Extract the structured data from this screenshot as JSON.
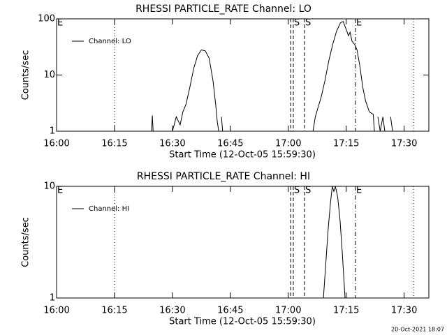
{
  "chart_data": [
    {
      "type": "line",
      "title": "RHESSI PARTICLE_RATE Channel: LO",
      "xlabel": "Start Time (12-Oct-05 15:59:30)",
      "ylabel": "Counts/sec",
      "log_y": true,
      "ylim": [
        1,
        100
      ],
      "yticks": [
        1,
        10,
        100
      ],
      "xlim": [
        0,
        96.4
      ],
      "xticks": [
        {
          "value": 0,
          "label": "16:00"
        },
        {
          "value": 15,
          "label": "16:15"
        },
        {
          "value": 30,
          "label": "16:30"
        },
        {
          "value": 45,
          "label": "16:45"
        },
        {
          "value": 60,
          "label": "17:00"
        },
        {
          "value": 75,
          "label": "17:15"
        },
        {
          "value": 90,
          "label": "17:30"
        }
      ],
      "vlines": [
        {
          "x": 15,
          "style": "dotted"
        },
        {
          "x": 60.6,
          "style": "dashed"
        },
        {
          "x": 61.3,
          "style": "dashed"
        },
        {
          "x": 64.2,
          "style": "dashed"
        },
        {
          "x": 77.4,
          "style": "dashdot"
        },
        {
          "x": 92.4,
          "style": "dotted"
        }
      ],
      "markers": [
        {
          "text": "E",
          "x": 0
        },
        {
          "text": "S",
          "x": 61.3
        },
        {
          "text": "S",
          "x": 64.2
        },
        {
          "text": "E",
          "x": 77.4
        }
      ],
      "series": [
        {
          "name": "Channel: LO",
          "color": "#000000",
          "x": [
            24.6,
            24.8,
            25.0,
            null,
            30.0,
            31.0,
            32.0,
            32.7,
            33.5,
            34.5,
            35.5,
            36.5,
            37.5,
            38.5,
            39.5,
            40.5,
            41.2,
            41.6,
            42.0,
            null,
            42.7,
            43.0,
            null,
            66.4,
            67.0,
            67.6,
            68.5,
            69.5,
            70.5,
            71.5,
            72.5,
            73.5,
            74.2,
            75.0,
            75.6,
            76.0,
            76.5,
            77.2,
            77.8,
            78.5,
            79.3,
            80.0,
            81.0,
            82.0,
            82.3,
            null,
            83.2,
            83.8,
            84.5,
            85.0,
            null,
            86.5,
            87.0
          ],
          "values": [
            1,
            1.9,
            1,
            null,
            1,
            1.8,
            1.3,
            2.2,
            3,
            6,
            13,
            22,
            28,
            27,
            20,
            8,
            3,
            1.5,
            1,
            null,
            1.8,
            1,
            null,
            1,
            1.8,
            2.5,
            4,
            8,
            18,
            35,
            60,
            85,
            90,
            65,
            50,
            58,
            40,
            35,
            28,
            15,
            6,
            3.5,
            2.2,
            2,
            1,
            null,
            1.8,
            1,
            1.8,
            1,
            null,
            1.8,
            1
          ]
        }
      ]
    },
    {
      "type": "line",
      "title": "RHESSI PARTICLE_RATE Channel: HI",
      "xlabel": "Start Time (12-Oct-05 15:59:30)",
      "ylabel": "Counts/sec",
      "log_y": true,
      "ylim": [
        1,
        10
      ],
      "yticks": [
        1,
        10
      ],
      "xlim": [
        0,
        96.4
      ],
      "xticks": [
        {
          "value": 0,
          "label": "16:00"
        },
        {
          "value": 15,
          "label": "16:15"
        },
        {
          "value": 30,
          "label": "16:30"
        },
        {
          "value": 45,
          "label": "16:45"
        },
        {
          "value": 60,
          "label": "17:00"
        },
        {
          "value": 75,
          "label": "17:15"
        },
        {
          "value": 90,
          "label": "17:30"
        }
      ],
      "vlines": [
        {
          "x": 15,
          "style": "dotted"
        },
        {
          "x": 60.6,
          "style": "dashed"
        },
        {
          "x": 61.3,
          "style": "dashed"
        },
        {
          "x": 64.2,
          "style": "dashed"
        },
        {
          "x": 77.4,
          "style": "dashdot"
        },
        {
          "x": 92.4,
          "style": "dotted"
        }
      ],
      "markers": [
        {
          "text": "E",
          "x": 0
        },
        {
          "text": "S",
          "x": 61.3
        },
        {
          "text": "S",
          "x": 64.2
        },
        {
          "text": "E",
          "x": 77.4
        }
      ],
      "series": [
        {
          "name": "Channel: HI",
          "color": "#000000",
          "x": [
            69.1,
            69.7,
            70.3,
            70.9,
            71.4,
            71.8,
            72.2,
            72.8,
            73.4,
            74.0,
            74.7
          ],
          "values": [
            1,
            2,
            4,
            7,
            10,
            9,
            10,
            8,
            5,
            2.5,
            1
          ]
        }
      ]
    }
  ],
  "footer": "20-Oct-2021 18:07"
}
